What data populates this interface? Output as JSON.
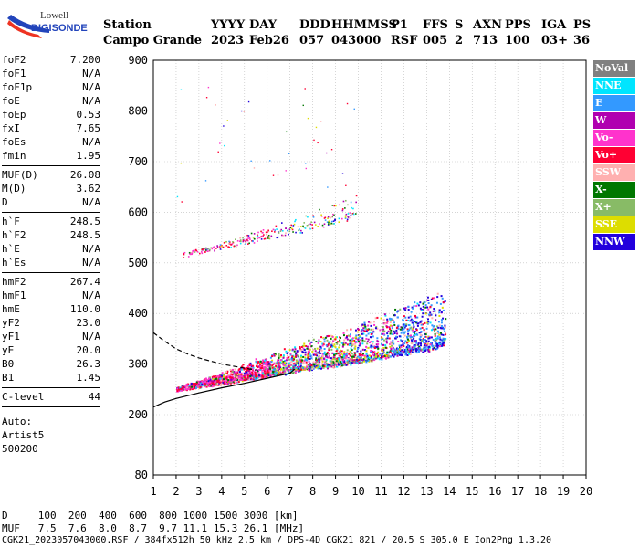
{
  "logo": {
    "line1": "Lowell",
    "line2": "DIGISONDE"
  },
  "header": {
    "labels": [
      "Station",
      "YYYY",
      "DAY",
      "DDD",
      "HHMMSS",
      "P1",
      "FFS",
      "S",
      "AXN",
      "PPS",
      "IGA",
      "PS"
    ],
    "values": [
      "Campo Grande",
      "2023",
      "Feb26",
      "057",
      "043000",
      "RSF",
      "005",
      "2",
      "713",
      "100",
      "03+",
      "36"
    ]
  },
  "params": {
    "group1": [
      {
        "name": "foF2",
        "value": "7.200"
      },
      {
        "name": "foF1",
        "value": "N/A"
      },
      {
        "name": "foF1p",
        "value": "N/A"
      },
      {
        "name": "foE",
        "value": "N/A"
      },
      {
        "name": "foEp",
        "value": "0.53"
      },
      {
        "name": "fxI",
        "value": "7.65"
      },
      {
        "name": "foEs",
        "value": "N/A"
      },
      {
        "name": "fmin",
        "value": "1.95"
      }
    ],
    "group2": [
      {
        "name": "MUF(D)",
        "value": "26.08"
      },
      {
        "name": "M(D)",
        "value": "3.62"
      },
      {
        "name": "D",
        "value": "N/A"
      }
    ],
    "group3": [
      {
        "name": "h`F",
        "value": "248.5"
      },
      {
        "name": "h`F2",
        "value": "248.5"
      },
      {
        "name": "h`E",
        "value": "N/A"
      },
      {
        "name": "h`Es",
        "value": "N/A"
      }
    ],
    "group4": [
      {
        "name": "hmF2",
        "value": "267.4"
      },
      {
        "name": "hmF1",
        "value": "N/A"
      },
      {
        "name": "hmE",
        "value": "110.0"
      },
      {
        "name": "yF2",
        "value": "23.0"
      },
      {
        "name": "yF1",
        "value": "N/A"
      },
      {
        "name": "yE",
        "value": "20.0"
      },
      {
        "name": "B0",
        "value": "26.3"
      },
      {
        "name": "B1",
        "value": "1.45"
      }
    ],
    "group5": [
      {
        "name": "C-level",
        "value": "44"
      }
    ],
    "auto": [
      "Auto:",
      "Artist5",
      "500200"
    ]
  },
  "legend": [
    {
      "label": "NoVal",
      "color": "#808080"
    },
    {
      "label": "NNE",
      "color": "#00e5ff"
    },
    {
      "label": "E",
      "color": "#3399ff"
    },
    {
      "label": "W",
      "color": "#b000b0"
    },
    {
      "label": "Vo-",
      "color": "#ff33cc"
    },
    {
      "label": "Vo+",
      "color": "#ff0033"
    },
    {
      "label": "SSW",
      "color": "#ffb0b0"
    },
    {
      "label": "X-",
      "color": "#007700"
    },
    {
      "label": "X+",
      "color": "#88bb66"
    },
    {
      "label": "SSE",
      "color": "#dddd00"
    },
    {
      "label": "NNW",
      "color": "#2200dd"
    }
  ],
  "dmuf": {
    "d_label": "D",
    "d_values": [
      "100",
      "200",
      "400",
      "600",
      "800",
      "1000",
      "1500",
      "3000"
    ],
    "d_unit": "[km]",
    "muf_label": "MUF",
    "muf_values": [
      "7.5",
      "7.6",
      "8.0",
      "8.7",
      "9.7",
      "11.1",
      "15.3",
      "26.1"
    ],
    "muf_unit": "[MHz]"
  },
  "footer": "CGK21_2023057043000.RSF / 384fx512h 50 kHz 2.5 km / DPS-4D CGK21 821 / 20.5 S 305.0 E Ion2Png 1.3.20",
  "chart_data": {
    "type": "scatter",
    "x_ticks": [
      1,
      2,
      3,
      4,
      5,
      6,
      7,
      8,
      9,
      10,
      11,
      12,
      13,
      14,
      15,
      16,
      17,
      18,
      19,
      20
    ],
    "y_ticks": [
      80,
      200,
      300,
      400,
      500,
      600,
      700,
      800,
      900
    ],
    "y_scale": "compressed below 200 km",
    "xlim": [
      1,
      20
    ],
    "ylim": [
      80,
      900
    ],
    "grid": true,
    "legend_position": "right",
    "series": [
      {
        "name": "F2 trace (o)",
        "x": [
          2.0,
          3,
          4,
          5,
          6,
          7,
          8,
          9,
          10,
          11,
          12,
          13,
          13.8
        ],
        "y": [
          255,
          262,
          268,
          276,
          283,
          290,
          297,
          303,
          311,
          318,
          326,
          333,
          345
        ]
      },
      {
        "name": "2F trace",
        "x": [
          2.2,
          3,
          4,
          5,
          6,
          7,
          8,
          9,
          9.9
        ],
        "y": [
          520,
          528,
          536,
          546,
          555,
          566,
          575,
          588,
          598
        ]
      }
    ],
    "lines": [
      {
        "name": "profile-solid",
        "x": [
          1,
          1.5,
          2,
          3,
          4,
          5,
          6,
          7,
          7.2
        ],
        "y": [
          215,
          225,
          232,
          243,
          253,
          262,
          272,
          282,
          290
        ]
      },
      {
        "name": "profile-dashed",
        "x": [
          1,
          1.5,
          2,
          2.5,
          3,
          4,
          5,
          5.5
        ],
        "y": [
          362,
          345,
          330,
          320,
          312,
          300,
          292,
          288
        ]
      }
    ]
  }
}
